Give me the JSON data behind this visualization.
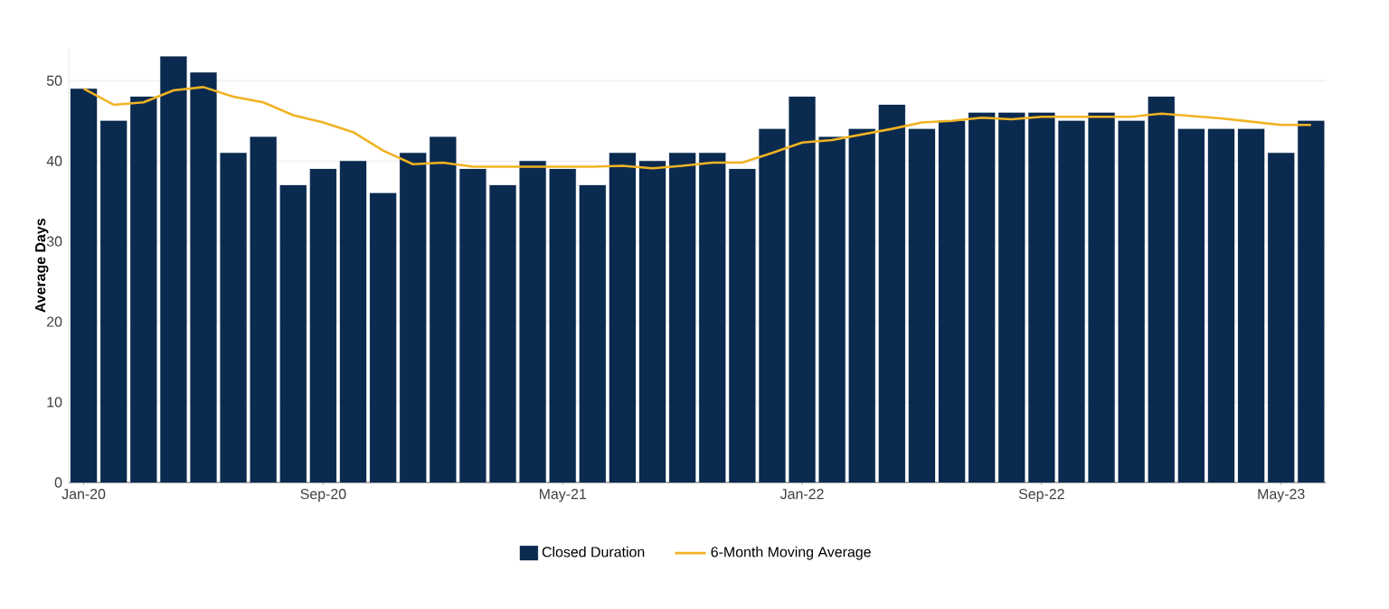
{
  "chart_data": {
    "type": "bar",
    "ylabel": "Average Days",
    "categories": [
      "Jan-20",
      null,
      null,
      null,
      null,
      null,
      null,
      null,
      "Sep-20",
      null,
      null,
      null,
      null,
      null,
      null,
      null,
      "May-21",
      null,
      null,
      null,
      null,
      null,
      null,
      null,
      "Jan-22",
      null,
      null,
      null,
      null,
      null,
      null,
      null,
      "Sep-22",
      null,
      null,
      null,
      null,
      null,
      null,
      null,
      "May-23",
      null
    ],
    "series": [
      {
        "name": "Closed Duration",
        "color": "#0b2a4f",
        "values": [
          49,
          45,
          48,
          53,
          51,
          41,
          43,
          37,
          39,
          40,
          36,
          41,
          43,
          39,
          37,
          40,
          39,
          37,
          41,
          40,
          41,
          41,
          39,
          44,
          48,
          43,
          44,
          47,
          44,
          45,
          46,
          46,
          46,
          45,
          46,
          45,
          48,
          44,
          44,
          44,
          41,
          45
        ]
      },
      {
        "name": "6-Month Moving Average",
        "type": "line",
        "color": "#f0b323",
        "values": [
          49,
          47,
          47.3,
          48.8,
          49.2,
          48,
          47.3,
          45.7,
          44.8,
          43.6,
          41.3,
          39.6,
          39.8,
          39.3,
          39.3,
          39.3,
          39.3,
          39.3,
          39.4,
          39.1,
          39.4,
          39.8,
          39.8,
          41,
          42.3,
          42.6,
          43.3,
          44,
          44.8,
          45,
          45.4,
          45.2,
          45.5,
          45.5,
          45.5,
          45.5,
          45.9,
          45.6,
          45.3,
          44.9,
          44.5,
          44.5
        ]
      }
    ],
    "ylim": [
      0,
      54
    ],
    "yticks": [
      0,
      10,
      20,
      30,
      40,
      50
    ],
    "grid": "y",
    "legend": "bottom"
  }
}
